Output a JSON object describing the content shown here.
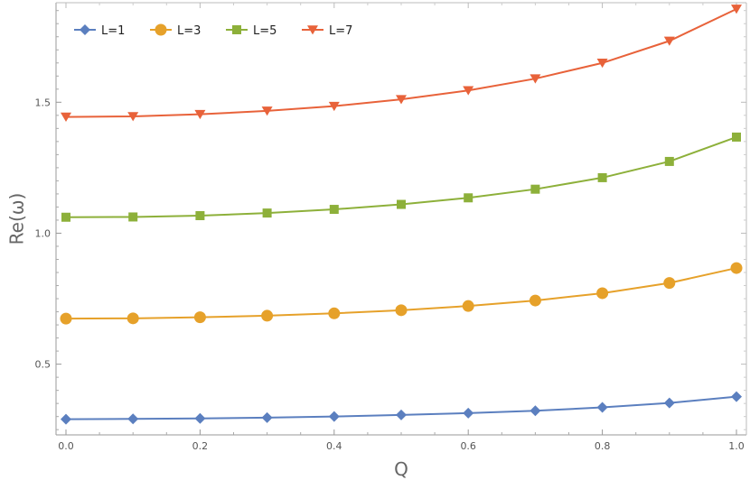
{
  "chart_data": {
    "type": "line",
    "xlabel": "Q",
    "ylabel": "Re(ω)",
    "xlim": [
      0,
      1
    ],
    "ylim": [
      0.23,
      1.88
    ],
    "x_ticks": [
      0.0,
      0.2,
      0.4,
      0.6,
      0.8,
      1.0
    ],
    "x_tick_labels": [
      "0.0",
      "0.2",
      "0.4",
      "0.6",
      "0.8",
      "1.0"
    ],
    "y_ticks": [
      0.5,
      1.0,
      1.5
    ],
    "y_tick_labels": [
      "0.5",
      "1.0",
      "1.5"
    ],
    "grid": false,
    "legend_position": "top-left",
    "x": [
      0.0,
      0.1,
      0.2,
      0.3,
      0.4,
      0.5,
      0.6,
      0.7,
      0.8,
      0.9,
      1.0
    ],
    "series": [
      {
        "name": "L=1",
        "color": "#5b7fbf",
        "marker": "diamond",
        "values": [
          0.29,
          0.291,
          0.293,
          0.296,
          0.3,
          0.306,
          0.313,
          0.322,
          0.335,
          0.352,
          0.376
        ]
      },
      {
        "name": "L=3",
        "color": "#e6a12a",
        "marker": "circle",
        "values": [
          0.674,
          0.675,
          0.679,
          0.685,
          0.694,
          0.706,
          0.722,
          0.743,
          0.771,
          0.81,
          0.867
        ]
      },
      {
        "name": "L=5",
        "color": "#8db03a",
        "marker": "square",
        "values": [
          1.061,
          1.062,
          1.067,
          1.077,
          1.091,
          1.11,
          1.135,
          1.168,
          1.212,
          1.274,
          1.367
        ]
      },
      {
        "name": "L=7",
        "color": "#e8623a",
        "marker": "triangle-down",
        "values": [
          1.444,
          1.446,
          1.454,
          1.467,
          1.485,
          1.511,
          1.545,
          1.59,
          1.65,
          1.734,
          1.856
        ]
      }
    ]
  }
}
